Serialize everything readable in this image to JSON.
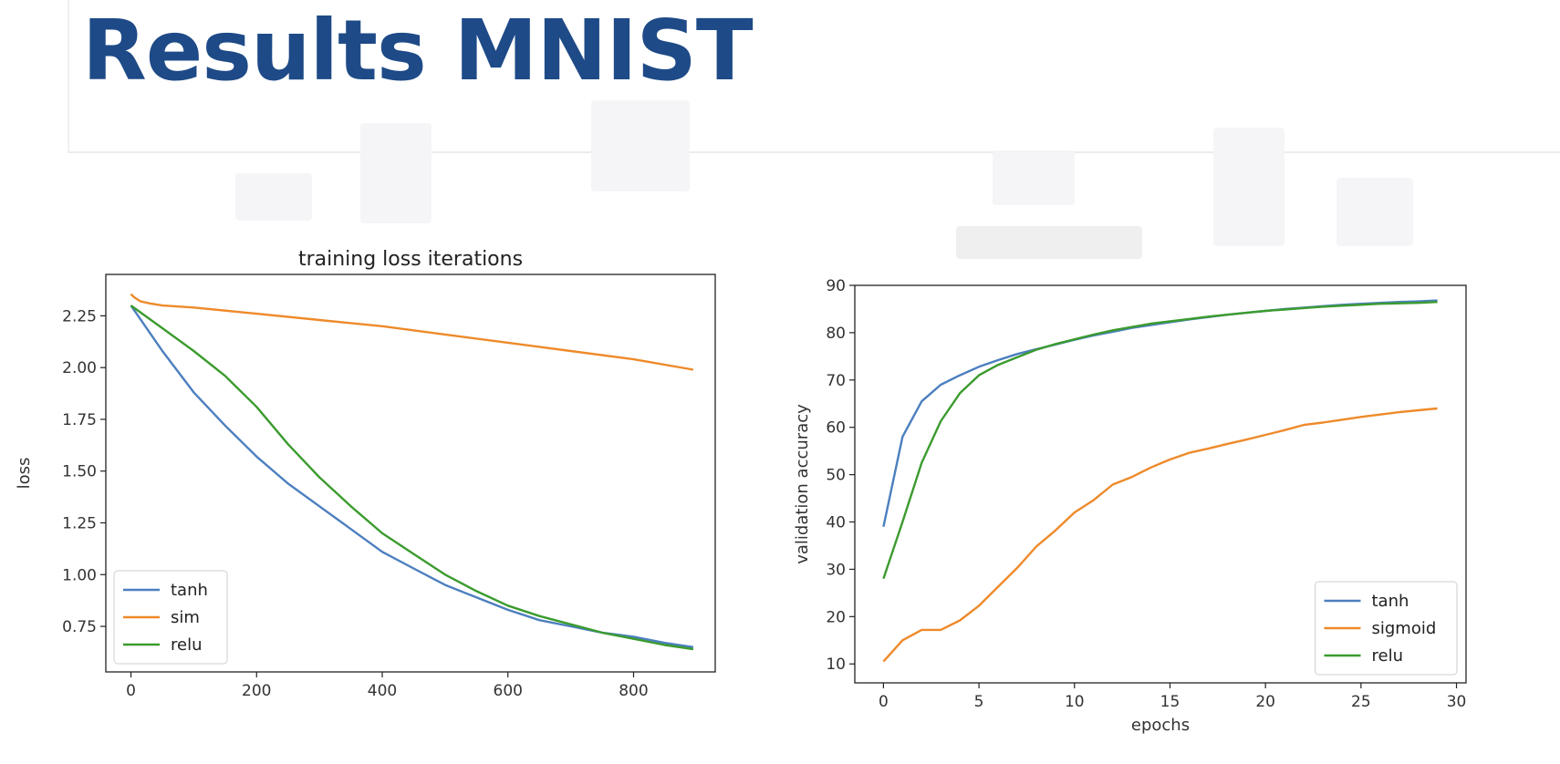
{
  "slide": {
    "title": "Results MNIST"
  },
  "colors": {
    "title": "#1e4a87",
    "tanh": "#4c7fbf",
    "sigmoid": "#ee8a2a",
    "relu": "#3b9b2e"
  },
  "chart_data": [
    {
      "type": "line",
      "title": "training loss iterations",
      "xlabel": "",
      "ylabel": "loss",
      "xlim": [
        -40,
        930
      ],
      "ylim": [
        0.53,
        2.45
      ],
      "xticks": [
        0,
        200,
        400,
        600,
        800
      ],
      "yticks": [
        0.75,
        1.0,
        1.25,
        1.5,
        1.75,
        2.0,
        2.25
      ],
      "legend_position": "lower-left",
      "series": [
        {
          "name": "tanh",
          "color": "#4c7fbf",
          "x": [
            0,
            50,
            100,
            150,
            200,
            250,
            300,
            350,
            400,
            450,
            500,
            550,
            600,
            650,
            700,
            750,
            800,
            850,
            895
          ],
          "y": [
            2.3,
            2.08,
            1.88,
            1.72,
            1.57,
            1.44,
            1.33,
            1.22,
            1.11,
            1.03,
            0.95,
            0.89,
            0.83,
            0.78,
            0.75,
            0.72,
            0.7,
            0.67,
            0.65
          ]
        },
        {
          "name": "sim",
          "color": "#ee8a2a",
          "x": [
            0,
            5,
            15,
            30,
            50,
            100,
            200,
            300,
            400,
            500,
            600,
            700,
            800,
            895
          ],
          "y": [
            2.355,
            2.34,
            2.32,
            2.31,
            2.3,
            2.29,
            2.26,
            2.23,
            2.2,
            2.16,
            2.12,
            2.08,
            2.04,
            1.99
          ]
        },
        {
          "name": "relu",
          "color": "#3b9b2e",
          "x": [
            0,
            50,
            100,
            150,
            200,
            250,
            300,
            350,
            400,
            450,
            500,
            550,
            600,
            650,
            700,
            750,
            800,
            850,
            895
          ],
          "y": [
            2.3,
            2.19,
            2.08,
            1.96,
            1.81,
            1.63,
            1.47,
            1.33,
            1.2,
            1.1,
            1.0,
            0.92,
            0.85,
            0.8,
            0.76,
            0.72,
            0.69,
            0.66,
            0.64
          ]
        }
      ]
    },
    {
      "type": "line",
      "title": "",
      "xlabel": "epochs",
      "ylabel": "validation accuracy",
      "xlim": [
        -1.5,
        30.5
      ],
      "ylim": [
        6,
        90
      ],
      "xticks": [
        0,
        5,
        10,
        15,
        20,
        25,
        30
      ],
      "yticks": [
        10,
        20,
        30,
        40,
        50,
        60,
        70,
        80,
        90
      ],
      "legend_position": "lower-right",
      "series": [
        {
          "name": "tanh",
          "color": "#4c7fbf",
          "x": [
            0,
            1,
            2,
            3,
            4,
            5,
            6,
            7,
            8,
            9,
            10,
            11,
            12,
            13,
            14,
            15,
            16,
            17,
            18,
            19,
            20,
            21,
            22,
            23,
            24,
            25,
            26,
            27,
            28,
            29
          ],
          "y": [
            39,
            58,
            65.5,
            69,
            71,
            72.8,
            74.2,
            75.5,
            76.5,
            77.5,
            78.5,
            79.4,
            80.2,
            81,
            81.6,
            82.2,
            82.8,
            83.3,
            83.8,
            84.2,
            84.6,
            85,
            85.3,
            85.6,
            85.9,
            86.1,
            86.3,
            86.5,
            86.6,
            86.8
          ]
        },
        {
          "name": "sigmoid",
          "color": "#ee8a2a",
          "x": [
            0,
            1,
            2,
            3,
            4,
            5,
            6,
            7,
            8,
            9,
            10,
            11,
            12,
            13,
            14,
            15,
            16,
            17,
            18,
            19,
            20,
            21,
            22,
            23,
            24,
            25,
            26,
            27,
            28,
            29
          ],
          "y": [
            10.5,
            15,
            17.2,
            17.2,
            19.2,
            22.3,
            26.3,
            30.3,
            34.8,
            38.2,
            42,
            44.6,
            47.9,
            49.5,
            51.5,
            53.2,
            54.6,
            55.5,
            56.5,
            57.4,
            58.4,
            59.4,
            60.5,
            61,
            61.6,
            62.2,
            62.7,
            63.2,
            63.6,
            64
          ]
        },
        {
          "name": "relu",
          "color": "#3b9b2e",
          "x": [
            0,
            1,
            2,
            3,
            4,
            5,
            6,
            7,
            8,
            9,
            10,
            11,
            12,
            13,
            14,
            15,
            16,
            17,
            18,
            19,
            20,
            21,
            22,
            23,
            24,
            25,
            26,
            27,
            28,
            29
          ],
          "y": [
            28,
            40,
            52.5,
            61.3,
            67.2,
            71,
            73.2,
            74.8,
            76.4,
            77.6,
            78.6,
            79.6,
            80.5,
            81.2,
            81.9,
            82.4,
            82.9,
            83.4,
            83.8,
            84.2,
            84.6,
            84.9,
            85.2,
            85.5,
            85.7,
            85.9,
            86.1,
            86.2,
            86.3,
            86.5
          ]
        }
      ]
    }
  ]
}
